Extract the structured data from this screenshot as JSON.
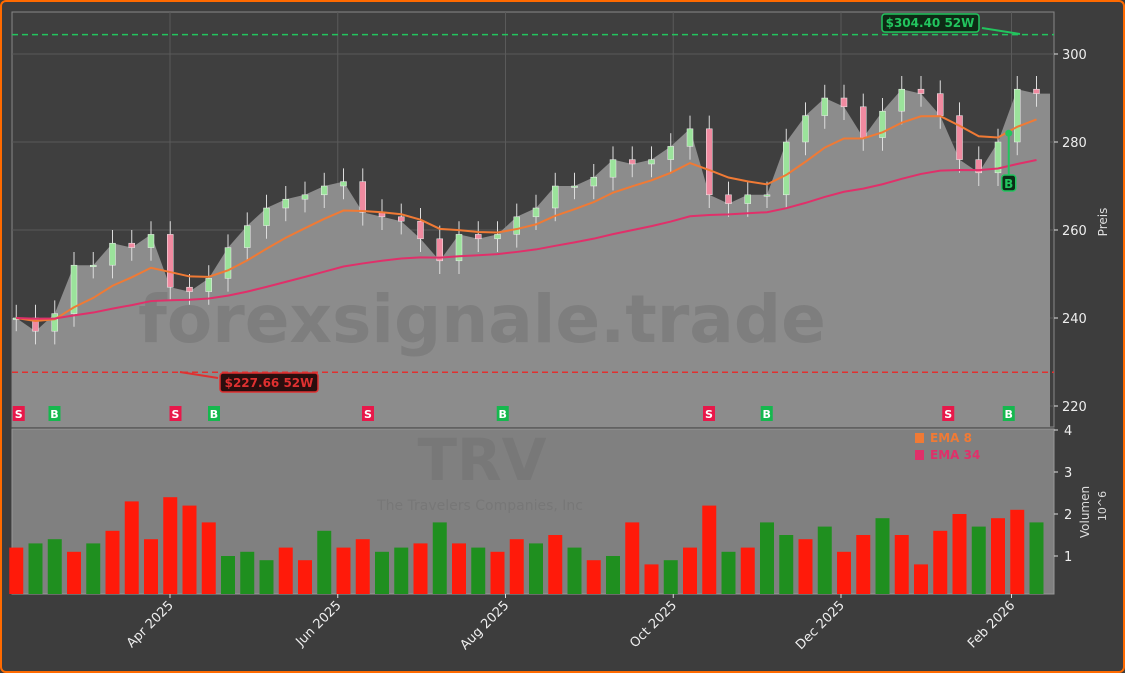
{
  "chart_data": [
    {
      "type": "candlestick",
      "panel": "price",
      "ticker": "TRV",
      "company": "The Travelers Companies, Inc",
      "watermark": "forexsignale.trade",
      "ylabel": "Preis",
      "ylim": [
        217,
        309
      ],
      "yticks": [
        220,
        240,
        260,
        280,
        300
      ],
      "grid": true,
      "x": [
        "2025-02-03",
        "2025-02-10",
        "2025-02-17",
        "2025-02-24",
        "2025-03-03",
        "2025-03-10",
        "2025-03-17",
        "2025-03-24",
        "2025-03-31",
        "2025-04-07",
        "2025-04-14",
        "2025-04-21",
        "2025-04-28",
        "2025-05-05",
        "2025-05-12",
        "2025-05-19",
        "2025-05-26",
        "2025-06-02",
        "2025-06-09",
        "2025-06-16",
        "2025-06-23",
        "2025-06-30",
        "2025-07-07",
        "2025-07-14",
        "2025-07-21",
        "2025-07-28",
        "2025-08-04",
        "2025-08-11",
        "2025-08-18",
        "2025-08-25",
        "2025-09-01",
        "2025-09-08",
        "2025-09-15",
        "2025-09-22",
        "2025-09-29",
        "2025-10-06",
        "2025-10-13",
        "2025-10-20",
        "2025-10-27",
        "2025-11-03",
        "2025-11-10",
        "2025-11-17",
        "2025-11-24",
        "2025-12-01",
        "2025-12-08",
        "2025-12-15",
        "2025-12-22",
        "2025-12-29",
        "2026-01-05",
        "2026-01-12",
        "2026-01-19",
        "2026-01-26",
        "2026-02-02",
        "2026-02-09"
      ],
      "close": [
        240,
        237,
        241,
        252,
        252,
        257,
        256,
        259,
        247,
        246,
        249,
        256,
        261,
        265,
        267,
        268,
        270,
        271,
        264,
        263,
        262,
        258,
        253,
        259,
        258,
        259,
        263,
        265,
        270,
        270,
        272,
        276,
        275,
        276,
        279,
        283,
        268,
        266,
        268,
        268,
        280,
        286,
        290,
        288,
        281,
        287,
        292,
        291,
        286,
        276,
        273,
        280,
        292,
        291
      ],
      "last_price": 291,
      "series": [
        {
          "name": "EMA 8",
          "period": 8,
          "color": "#f07a35"
        },
        {
          "name": "EMA 34",
          "period": 34,
          "color": "#e0306a"
        }
      ],
      "high_52w": {
        "value": 304.4,
        "label": "$304.40 52W",
        "color": "#22c55e"
      },
      "low_52w": {
        "value": 227.66,
        "label": "$227.66 52W",
        "color": "#e03030"
      },
      "signals": [
        {
          "type": "S",
          "date": "2025-02-05"
        },
        {
          "type": "B",
          "date": "2025-02-18"
        },
        {
          "type": "S",
          "date": "2025-04-03"
        },
        {
          "type": "B",
          "date": "2025-04-17"
        },
        {
          "type": "S",
          "date": "2025-06-12"
        },
        {
          "type": "B",
          "date": "2025-07-31"
        },
        {
          "type": "S",
          "date": "2025-10-14"
        },
        {
          "type": "B",
          "date": "2025-11-04"
        },
        {
          "type": "S",
          "date": "2026-01-09"
        },
        {
          "type": "B",
          "date": "2026-01-31"
        }
      ],
      "chart_signal_marker": {
        "type": "B",
        "date": "2026-01-31"
      },
      "up_color": "#9be39b",
      "down_color": "#f08aa0"
    },
    {
      "type": "bar",
      "panel": "volume",
      "ylabel": "Volumen",
      "yunit": "10^6",
      "ylim": [
        0,
        4.1
      ],
      "yticks": [
        1,
        2,
        3,
        4
      ],
      "values": [
        1.2,
        1.3,
        1.4,
        1.1,
        1.3,
        1.6,
        2.3,
        1.4,
        2.4,
        2.2,
        1.8,
        1.0,
        1.1,
        0.9,
        1.2,
        0.9,
        1.6,
        1.2,
        1.4,
        1.1,
        1.2,
        1.3,
        1.8,
        1.3,
        1.2,
        1.1,
        1.4,
        1.3,
        1.5,
        1.2,
        0.9,
        1.0,
        1.8,
        0.8,
        0.9,
        1.2,
        2.2,
        1.1,
        1.2,
        1.8,
        1.5,
        1.4,
        1.7,
        1.1,
        1.5,
        1.9,
        1.5,
        0.8,
        1.6,
        2.0,
        1.7,
        1.9,
        2.1,
        1.8
      ],
      "direction": [
        "down",
        "up",
        "up",
        "down",
        "up",
        "down",
        "down",
        "down",
        "down",
        "down",
        "down",
        "up",
        "up",
        "up",
        "down",
        "down",
        "up",
        "down",
        "down",
        "up",
        "up",
        "down",
        "up",
        "down",
        "up",
        "down",
        "down",
        "up",
        "down",
        "up",
        "down",
        "up",
        "down",
        "down",
        "up",
        "down",
        "down",
        "up",
        "down",
        "up",
        "up",
        "down",
        "up",
        "down",
        "down",
        "up",
        "down",
        "down",
        "down",
        "down",
        "up",
        "down",
        "down",
        "up"
      ],
      "up_color": "#1f8f1f",
      "down_color": "#ff1a0a"
    }
  ],
  "xaxis": {
    "ticks": [
      {
        "label": "Apr 2025",
        "date": "2025-04-01"
      },
      {
        "label": "Jun 2025",
        "date": "2025-06-01"
      },
      {
        "label": "Aug 2025",
        "date": "2025-08-01"
      },
      {
        "label": "Oct 2025",
        "date": "2025-10-01"
      },
      {
        "label": "Dec 2025",
        "date": "2025-12-01"
      },
      {
        "label": "Feb 2026",
        "date": "2026-02-01"
      }
    ]
  },
  "legend": {
    "ema8": "EMA 8",
    "ema34": "EMA 34"
  }
}
